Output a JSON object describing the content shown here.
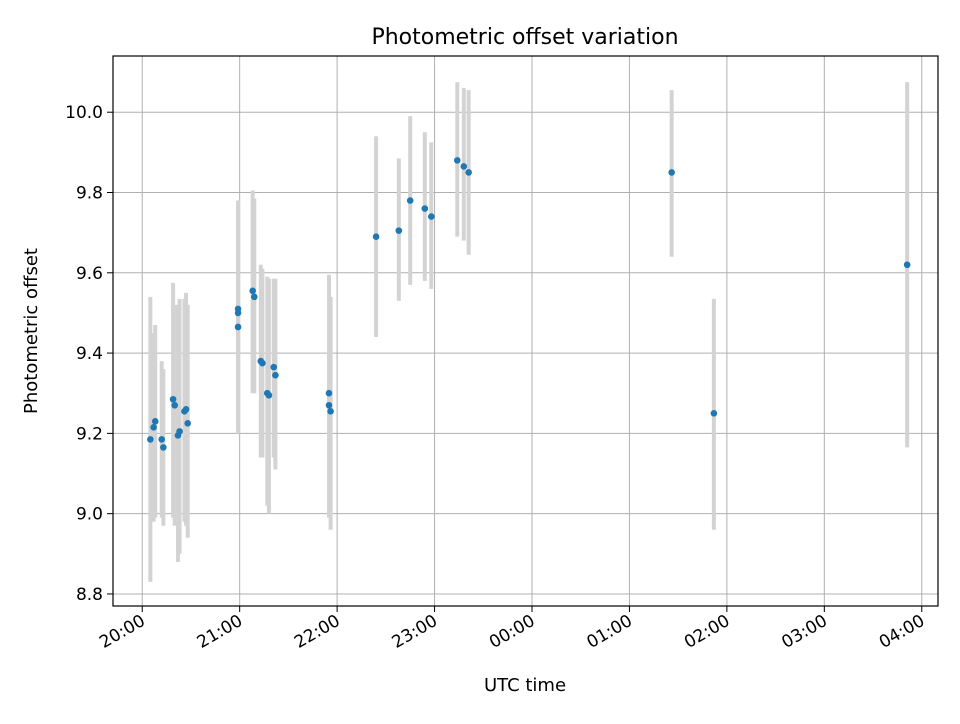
{
  "chart_data": {
    "type": "scatter",
    "title": "Photometric offset variation",
    "xlabel": "UTC time",
    "ylabel": "Photometric offset",
    "x_is_time": true,
    "xlim": [
      "19:42",
      "04:10"
    ],
    "ylim": [
      8.77,
      10.14
    ],
    "x_ticks": [
      "20:00",
      "21:00",
      "22:00",
      "23:00",
      "00:00",
      "01:00",
      "02:00",
      "03:00",
      "04:00"
    ],
    "y_ticks": [
      "8.8",
      "9.0",
      "9.2",
      "9.4",
      "9.6",
      "9.8",
      "10.0"
    ],
    "grid": true,
    "colors": {
      "points": "#1f77b4",
      "errorbars": "#d3d3d3",
      "grid": "#b0b0b0"
    },
    "series": [
      {
        "points": [
          {
            "x": "20:05",
            "y": 9.185,
            "ylo": 8.83,
            "yhi": 9.54
          },
          {
            "x": "20:07",
            "y": 9.215,
            "ylo": 8.98,
            "yhi": 9.45
          },
          {
            "x": "20:08",
            "y": 9.23,
            "ylo": 8.99,
            "yhi": 9.47
          },
          {
            "x": "20:12",
            "y": 9.185,
            "ylo": 8.99,
            "yhi": 9.38
          },
          {
            "x": "20:13",
            "y": 9.165,
            "ylo": 8.97,
            "yhi": 9.36
          },
          {
            "x": "20:19",
            "y": 9.285,
            "ylo": 8.99,
            "yhi": 9.575
          },
          {
            "x": "20:20",
            "y": 9.27,
            "ylo": 8.97,
            "yhi": 9.52
          },
          {
            "x": "20:22",
            "y": 9.195,
            "ylo": 8.88,
            "yhi": 9.52
          },
          {
            "x": "20:23",
            "y": 9.205,
            "ylo": 8.9,
            "yhi": 9.535
          },
          {
            "x": "20:26",
            "y": 9.255,
            "ylo": 8.98,
            "yhi": 9.535
          },
          {
            "x": "20:27",
            "y": 9.26,
            "ylo": 8.97,
            "yhi": 9.55
          },
          {
            "x": "20:28",
            "y": 9.225,
            "ylo": 8.94,
            "yhi": 9.52
          },
          {
            "x": "20:59",
            "y": 9.5,
            "ylo": 9.22,
            "yhi": 9.77
          },
          {
            "x": "20:59",
            "y": 9.51,
            "ylo": 9.23,
            "yhi": 9.78
          },
          {
            "x": "20:59",
            "y": 9.465,
            "ylo": 9.2,
            "yhi": 9.72
          },
          {
            "x": "21:08",
            "y": 9.555,
            "ylo": 9.3,
            "yhi": 9.805
          },
          {
            "x": "21:09",
            "y": 9.54,
            "ylo": 9.3,
            "yhi": 9.785
          },
          {
            "x": "21:13",
            "y": 9.38,
            "ylo": 9.14,
            "yhi": 9.62
          },
          {
            "x": "21:14",
            "y": 9.375,
            "ylo": 9.14,
            "yhi": 9.61
          },
          {
            "x": "21:17",
            "y": 9.3,
            "ylo": 9.02,
            "yhi": 9.59
          },
          {
            "x": "21:18",
            "y": 9.295,
            "ylo": 9.0,
            "yhi": 9.585
          },
          {
            "x": "21:21",
            "y": 9.365,
            "ylo": 9.14,
            "yhi": 9.585
          },
          {
            "x": "21:22",
            "y": 9.345,
            "ylo": 9.11,
            "yhi": 9.585
          },
          {
            "x": "21:55",
            "y": 9.3,
            "ylo": 9.01,
            "yhi": 9.595
          },
          {
            "x": "21:55",
            "y": 9.27,
            "ylo": 8.99,
            "yhi": 9.55
          },
          {
            "x": "21:56",
            "y": 9.255,
            "ylo": 8.96,
            "yhi": 9.54
          },
          {
            "x": "22:24",
            "y": 9.69,
            "ylo": 9.44,
            "yhi": 9.94
          },
          {
            "x": "22:38",
            "y": 9.705,
            "ylo": 9.53,
            "yhi": 9.885
          },
          {
            "x": "22:45",
            "y": 9.78,
            "ylo": 9.57,
            "yhi": 9.99
          },
          {
            "x": "22:54",
            "y": 9.76,
            "ylo": 9.58,
            "yhi": 9.95
          },
          {
            "x": "22:58",
            "y": 9.74,
            "ylo": 9.56,
            "yhi": 9.925
          },
          {
            "x": "23:14",
            "y": 9.88,
            "ylo": 9.69,
            "yhi": 10.075
          },
          {
            "x": "23:18",
            "y": 9.865,
            "ylo": 9.68,
            "yhi": 10.06
          },
          {
            "x": "23:21",
            "y": 9.85,
            "ylo": 9.645,
            "yhi": 10.055
          },
          {
            "x": "01:26",
            "y": 9.85,
            "ylo": 9.64,
            "yhi": 10.055
          },
          {
            "x": "01:52",
            "y": 9.25,
            "ylo": 8.96,
            "yhi": 9.535
          },
          {
            "x": "03:51",
            "y": 9.62,
            "ylo": 9.165,
            "yhi": 10.075
          }
        ]
      }
    ]
  }
}
